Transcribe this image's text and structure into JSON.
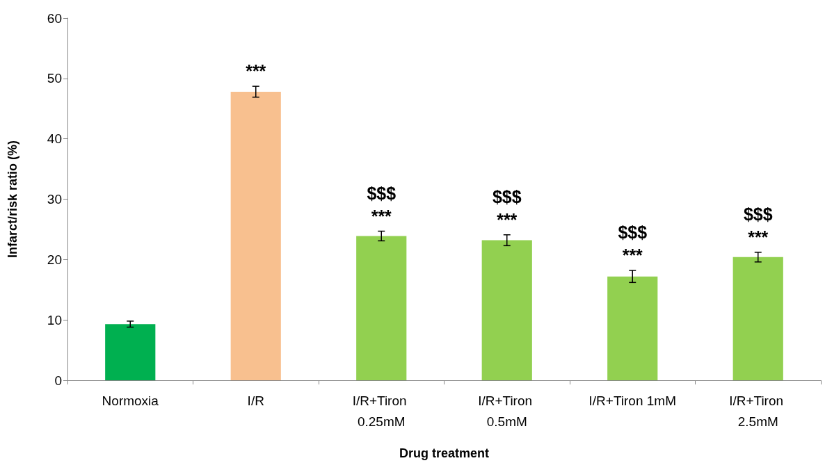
{
  "chart_data": {
    "type": "bar",
    "xlabel": "Drug treatment",
    "ylabel": "Infarct/risk ratio (%)",
    "categories": [
      "Normoxia",
      "I/R",
      "I/R+Tiron 0.25mM",
      "I/R+Tiron 0.5mM",
      "I/R+Tiron 1mM",
      "I/R+Tiron 2.5mM"
    ],
    "values": [
      9.3,
      47.8,
      23.9,
      23.2,
      17.2,
      20.4
    ],
    "errors": [
      0.5,
      0.9,
      0.8,
      0.9,
      1.0,
      0.8
    ],
    "colors": [
      "#00b050",
      "#f8c08f",
      "#92d050",
      "#92d050",
      "#92d050",
      "#92d050"
    ],
    "ylim": [
      0,
      60
    ],
    "yticks": [
      0,
      10,
      20,
      30,
      40,
      50,
      60
    ],
    "grid": false,
    "annotations": [
      {
        "text": "***",
        "x": "I/R",
        "y": 47.8
      },
      {
        "text": "$$$",
        "x": "I/R+Tiron 0.25mM",
        "y": 23.9
      },
      {
        "text": "***",
        "x": "I/R+Tiron 0.25mM",
        "y": 23.9
      },
      {
        "text": "$$$",
        "x": "I/R+Tiron 0.5mM",
        "y": 23.2
      },
      {
        "text": "***",
        "x": "I/R+Tiron 0.5mM",
        "y": 23.2
      },
      {
        "text": "$$$",
        "x": "I/R+Tiron 1mM",
        "y": 17.2
      },
      {
        "text": "***",
        "x": "I/R+Tiron 1mM",
        "y": 17.2
      },
      {
        "text": "$$$",
        "x": "I/R+Tiron 2.5mM",
        "y": 20.4
      },
      {
        "text": "***",
        "x": "I/R+Tiron 2.5mM",
        "y": 20.4
      }
    ]
  }
}
